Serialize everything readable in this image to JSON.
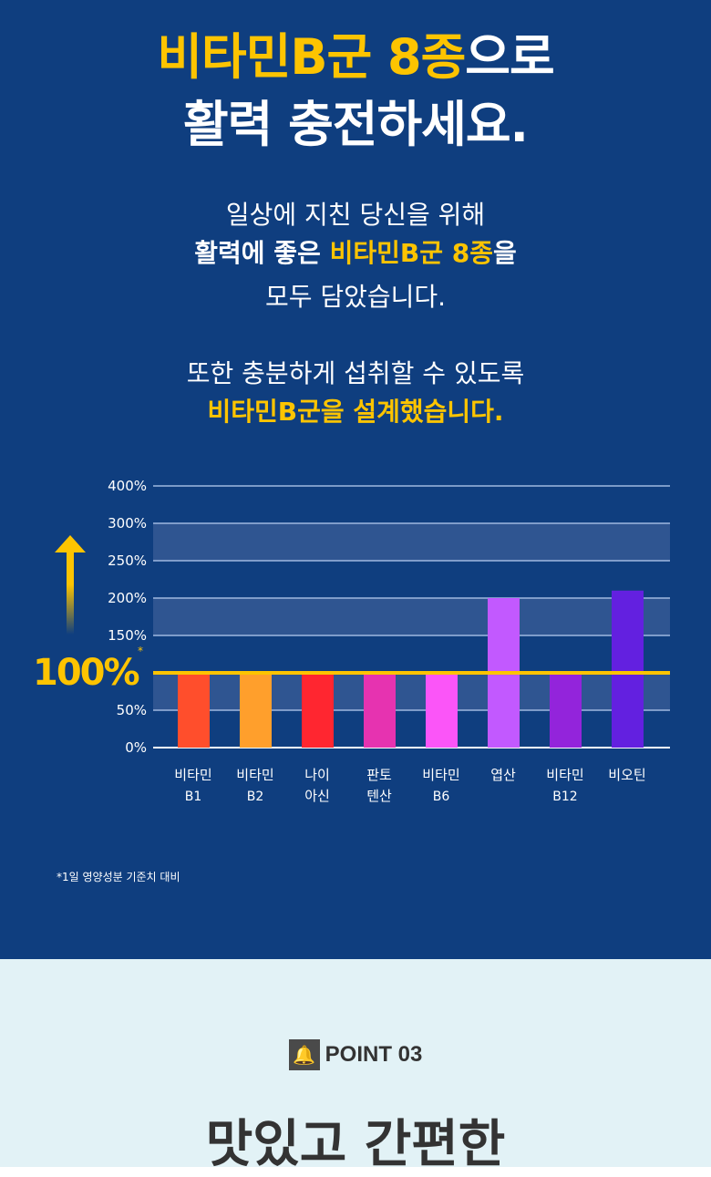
{
  "headline": {
    "line1_highlight": "비타민B군 8종",
    "line1_rest": "으로",
    "line2": "활력 충전하세요."
  },
  "body1": {
    "l1": "일상에 지친 당신을 위해",
    "l2a": "활력에 좋은 ",
    "l2b": "비타민B군 8종",
    "l2c": "을",
    "l3": "모두 담았습니다."
  },
  "body2": {
    "l1": "또한 충분하게 섭취할 수 있도록",
    "l2": "비타민B군을 설계했습니다."
  },
  "chart_data": {
    "type": "bar",
    "categories": [
      [
        "비타민",
        "B1"
      ],
      [
        "비타민",
        "B2"
      ],
      [
        "나이",
        "아신"
      ],
      [
        "판토",
        "텐산"
      ],
      [
        "비타민",
        "B6"
      ],
      [
        "엽산",
        ""
      ],
      [
        "비타민",
        "B12"
      ],
      [
        "비오틴",
        ""
      ]
    ],
    "values": [
      100,
      100,
      100,
      100,
      100,
      200,
      100,
      210
    ],
    "colors": [
      "#ff4e2c",
      "#ff9f2c",
      "#ff2630",
      "#e633b0",
      "#fb55f8",
      "#c259ff",
      "#9324db",
      "#6320e0"
    ],
    "yticks": [
      "0%",
      "50%",
      "",
      "150%",
      "200%",
      "250%",
      "300%",
      "400%"
    ],
    "ytick_values": [
      0,
      50,
      100,
      150,
      200,
      250,
      300,
      400
    ],
    "reference_line": {
      "value": 100,
      "label": "100%",
      "mark": "*",
      "color": "#fdc400"
    },
    "grid": true
  },
  "footnote": "*1일 영양성분 기준치 대비",
  "point": {
    "label": "POINT 03",
    "icon": "bell-icon",
    "title": "맛있고 간편한"
  }
}
